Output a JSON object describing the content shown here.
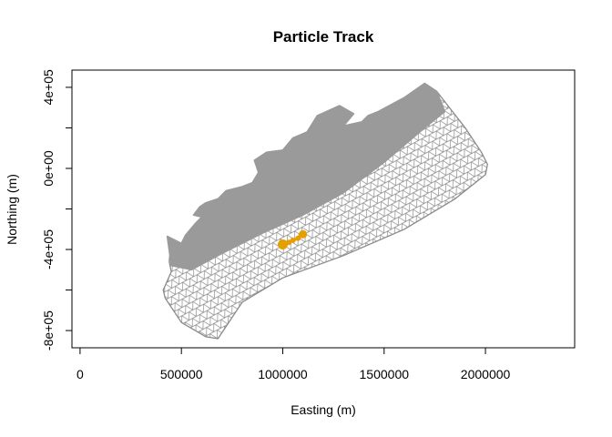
{
  "chart_data": {
    "type": "scatter",
    "title": "Particle Track",
    "xlabel": "Easting (m)",
    "ylabel": "Northing (m)",
    "xlim": [
      -40000,
      2440000
    ],
    "ylim": [
      -885000,
      485000
    ],
    "x_ticks": [
      {
        "value": 0,
        "label": "0"
      },
      {
        "value": 500000,
        "label": "500000"
      },
      {
        "value": 1000000,
        "label": "1000000"
      },
      {
        "value": 1500000,
        "label": "1500000"
      },
      {
        "value": 2000000,
        "label": "2000000"
      }
    ],
    "y_ticks": [
      {
        "value": 400000,
        "label": "4e+05"
      },
      {
        "value": 0,
        "label": "0e+00"
      },
      {
        "value": -400000,
        "label": "-4e+05"
      },
      {
        "value": -800000,
        "label": "-8e+05"
      }
    ],
    "y_minor_ticks": [
      200000,
      -200000,
      -600000
    ],
    "grid": false,
    "legend": "none",
    "mesh": {
      "description_color": "#999999",
      "line_color": "#8a8a8a",
      "fill_color": "#9a9a9a",
      "outline": [
        [
          410000,
          -600000
        ],
        [
          450000,
          -510000
        ],
        [
          440000,
          -460000
        ],
        [
          445000,
          -400000
        ],
        [
          430000,
          -335000
        ],
        [
          500000,
          -370000
        ],
        [
          520000,
          -330000
        ],
        [
          570000,
          -270000
        ],
        [
          600000,
          -240000
        ],
        [
          560000,
          -230000
        ],
        [
          590000,
          -190000
        ],
        [
          620000,
          -170000
        ],
        [
          680000,
          -150000
        ],
        [
          720000,
          -110000
        ],
        [
          800000,
          -90000
        ],
        [
          850000,
          -70000
        ],
        [
          880000,
          -20000
        ],
        [
          860000,
          40000
        ],
        [
          920000,
          80000
        ],
        [
          1000000,
          90000
        ],
        [
          1050000,
          150000
        ],
        [
          1120000,
          180000
        ],
        [
          1170000,
          260000
        ],
        [
          1280000,
          310000
        ],
        [
          1350000,
          270000
        ],
        [
          1300000,
          210000
        ],
        [
          1390000,
          230000
        ],
        [
          1420000,
          260000
        ],
        [
          1470000,
          280000
        ],
        [
          1600000,
          350000
        ],
        [
          1700000,
          420000
        ],
        [
          1760000,
          380000
        ],
        [
          1900000,
          200000
        ],
        [
          1980000,
          80000
        ],
        [
          2010000,
          20000
        ],
        [
          2000000,
          -30000
        ],
        [
          1850000,
          -150000
        ],
        [
          1600000,
          -300000
        ],
        [
          1300000,
          -430000
        ],
        [
          1000000,
          -540000
        ],
        [
          800000,
          -660000
        ],
        [
          680000,
          -840000
        ],
        [
          620000,
          -830000
        ],
        [
          500000,
          -760000
        ],
        [
          420000,
          -640000
        ]
      ],
      "dense_region": [
        [
          430000,
          -335000
        ],
        [
          500000,
          -370000
        ],
        [
          520000,
          -330000
        ],
        [
          570000,
          -270000
        ],
        [
          600000,
          -240000
        ],
        [
          560000,
          -230000
        ],
        [
          590000,
          -190000
        ],
        [
          620000,
          -170000
        ],
        [
          680000,
          -150000
        ],
        [
          720000,
          -110000
        ],
        [
          800000,
          -90000
        ],
        [
          850000,
          -70000
        ],
        [
          880000,
          -20000
        ],
        [
          860000,
          40000
        ],
        [
          920000,
          80000
        ],
        [
          1000000,
          90000
        ],
        [
          1050000,
          150000
        ],
        [
          1120000,
          180000
        ],
        [
          1170000,
          260000
        ],
        [
          1280000,
          310000
        ],
        [
          1350000,
          270000
        ],
        [
          1300000,
          210000
        ],
        [
          1390000,
          230000
        ],
        [
          1420000,
          260000
        ],
        [
          1470000,
          280000
        ],
        [
          1600000,
          350000
        ],
        [
          1700000,
          420000
        ],
        [
          1760000,
          380000
        ],
        [
          1800000,
          280000
        ],
        [
          1700000,
          200000
        ],
        [
          1500000,
          30000
        ],
        [
          1300000,
          -120000
        ],
        [
          1100000,
          -230000
        ],
        [
          900000,
          -320000
        ],
        [
          700000,
          -420000
        ],
        [
          550000,
          -500000
        ],
        [
          450000,
          -480000
        ]
      ]
    },
    "series": [
      {
        "color": "#E69F00",
        "points": [
          {
            "x": 1000000,
            "y": -375000
          },
          {
            "x": 1010000,
            "y": -370000
          },
          {
            "x": 1030000,
            "y": -365000
          },
          {
            "x": 1050000,
            "y": -355000
          },
          {
            "x": 1075000,
            "y": -345000
          },
          {
            "x": 1090000,
            "y": -330000
          },
          {
            "x": 1100000,
            "y": -325000
          }
        ]
      }
    ]
  }
}
